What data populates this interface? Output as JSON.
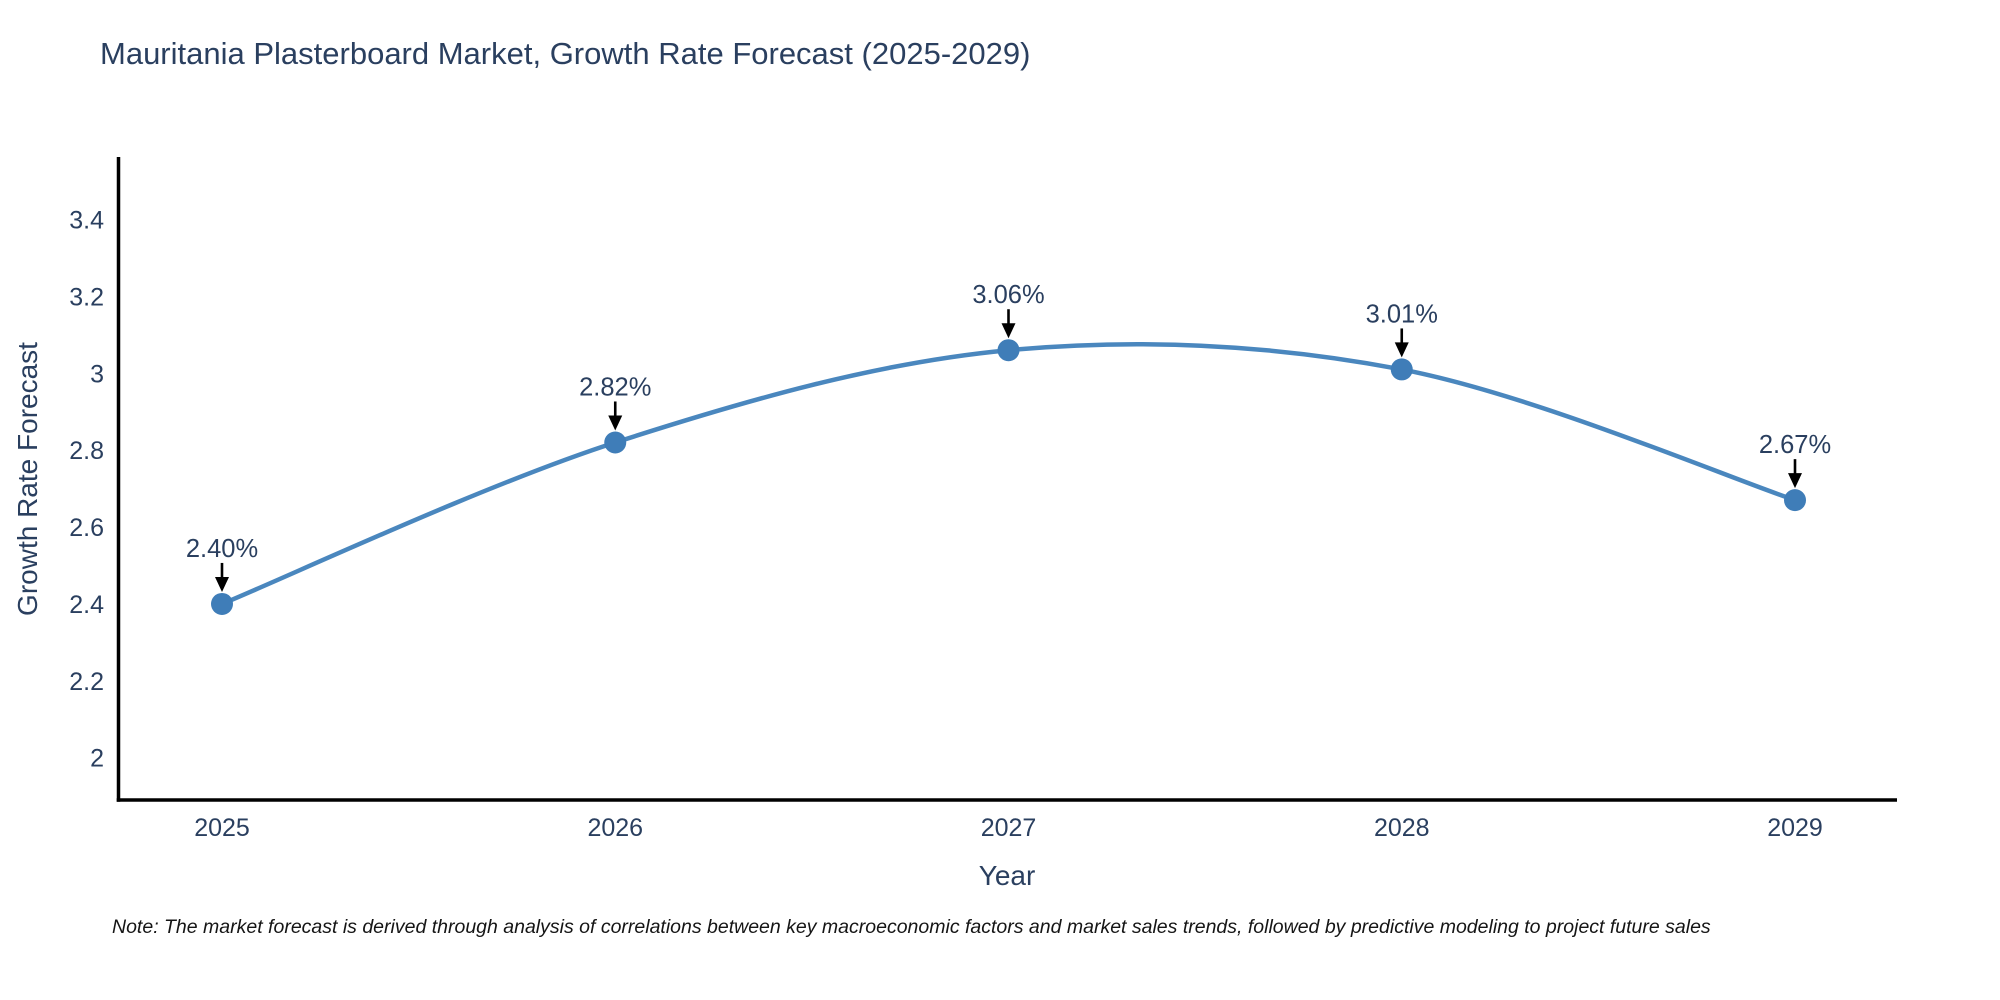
{
  "title": "Mauritania Plasterboard Market, Growth Rate Forecast (2025-2029)",
  "note": "Note: The market forecast is derived through analysis of correlations between key macroeconomic factors and market sales trends, followed by predictive modeling to project future sales",
  "chart_data": {
    "type": "line",
    "title": "Mauritania Plasterboard Market, Growth Rate Forecast (2025-2029)",
    "categories": [
      "2025",
      "2026",
      "2027",
      "2028",
      "2029"
    ],
    "values": [
      2.4,
      2.82,
      3.06,
      3.01,
      2.67
    ],
    "point_labels": [
      "2.40%",
      "2.82%",
      "3.06%",
      "3.01%",
      "2.67%"
    ],
    "xlabel": "Year",
    "ylabel": "Growth Rate Forecast",
    "ylim": [
      1.89,
      3.56
    ],
    "yticks": [
      2,
      2.2,
      2.4,
      2.6,
      2.8,
      3,
      3.2,
      3.4
    ],
    "ytick_labels": [
      "2",
      "2.2",
      "2.4",
      "2.6",
      "2.8",
      "3",
      "3.2",
      "3.4"
    ],
    "grid": false,
    "legend": "none",
    "line_shape": "spline",
    "colors": {
      "line": "#4a87be",
      "marker": "#3f7db8",
      "text": "#2a3f5f",
      "axis": "#000000",
      "arrow": "#000000",
      "background": "#ffffff"
    }
  }
}
